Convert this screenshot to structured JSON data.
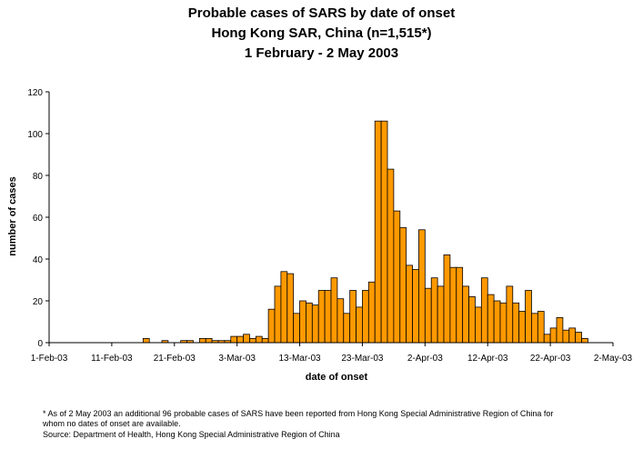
{
  "chart_data": {
    "type": "bar",
    "title": "Probable cases of SARS by date of onset",
    "subtitle": "Hong Kong SAR, China (n=1,515*)",
    "subtitle2": "1 February - 2 May 2003",
    "xlabel": "date of onset",
    "ylabel": "number of cases",
    "ylim": [
      0,
      120
    ],
    "yticks": [
      "0",
      "20",
      "40",
      "60",
      "80",
      "100",
      "120"
    ],
    "xticks": [
      "1-Feb-03",
      "11-Feb-03",
      "21-Feb-03",
      "3-Mar-03",
      "13-Mar-03",
      "23-Mar-03",
      "2-Apr-03",
      "12-Apr-03",
      "22-Apr-03",
      "2-May-03"
    ],
    "x_start": "1-Feb-03",
    "x_end": "2-May-03",
    "grid": false,
    "bar_color": "#FF9900",
    "categories": [
      "1-Feb-03",
      "2-Feb-03",
      "3-Feb-03",
      "4-Feb-03",
      "5-Feb-03",
      "6-Feb-03",
      "7-Feb-03",
      "8-Feb-03",
      "9-Feb-03",
      "10-Feb-03",
      "11-Feb-03",
      "12-Feb-03",
      "13-Feb-03",
      "14-Feb-03",
      "15-Feb-03",
      "16-Feb-03",
      "17-Feb-03",
      "18-Feb-03",
      "19-Feb-03",
      "20-Feb-03",
      "21-Feb-03",
      "22-Feb-03",
      "23-Feb-03",
      "24-Feb-03",
      "25-Feb-03",
      "26-Feb-03",
      "27-Feb-03",
      "28-Feb-03",
      "1-Mar-03",
      "2-Mar-03",
      "3-Mar-03",
      "4-Mar-03",
      "5-Mar-03",
      "6-Mar-03",
      "7-Mar-03",
      "8-Mar-03",
      "9-Mar-03",
      "10-Mar-03",
      "11-Mar-03",
      "12-Mar-03",
      "13-Mar-03",
      "14-Mar-03",
      "15-Mar-03",
      "16-Mar-03",
      "17-Mar-03",
      "18-Mar-03",
      "19-Mar-03",
      "20-Mar-03",
      "21-Mar-03",
      "22-Mar-03",
      "23-Mar-03",
      "24-Mar-03",
      "25-Mar-03",
      "26-Mar-03",
      "27-Mar-03",
      "28-Mar-03",
      "29-Mar-03",
      "30-Mar-03",
      "31-Mar-03",
      "1-Apr-03",
      "2-Apr-03",
      "3-Apr-03",
      "4-Apr-03",
      "5-Apr-03",
      "6-Apr-03",
      "7-Apr-03",
      "8-Apr-03",
      "9-Apr-03",
      "10-Apr-03",
      "11-Apr-03",
      "12-Apr-03",
      "13-Apr-03",
      "14-Apr-03",
      "15-Apr-03",
      "16-Apr-03",
      "17-Apr-03",
      "18-Apr-03",
      "19-Apr-03",
      "20-Apr-03",
      "21-Apr-03",
      "22-Apr-03",
      "23-Apr-03",
      "24-Apr-03",
      "25-Apr-03",
      "26-Apr-03",
      "27-Apr-03",
      "28-Apr-03",
      "29-Apr-03",
      "30-Apr-03",
      "1-May-03"
    ],
    "values": [
      0,
      0,
      0,
      0,
      0,
      0,
      0,
      0,
      0,
      0,
      0,
      0,
      0,
      0,
      0,
      2,
      0,
      0,
      1,
      0,
      0,
      1,
      1,
      0,
      2,
      2,
      1,
      1,
      1,
      3,
      3,
      4,
      2,
      3,
      2,
      16,
      27,
      34,
      33,
      14,
      20,
      19,
      18,
      25,
      25,
      31,
      21,
      14,
      25,
      17,
      25,
      29,
      106,
      106,
      83,
      63,
      55,
      37,
      35,
      54,
      26,
      31,
      27,
      42,
      36,
      36,
      27,
      22,
      17,
      31,
      23,
      20,
      19,
      27,
      19,
      15,
      25,
      14,
      15,
      4,
      7,
      12,
      6,
      7,
      5,
      2,
      0,
      0,
      0,
      0
    ]
  },
  "footnote_lines": [
    "* As of 2 May 2003 an additional 96 probable cases of SARS have been reported from Hong Kong Special Administrative Region of China for",
    "whom no dates of onset are available.",
    "Source: Department of Health, Hong Kong Special Administrative Region of China"
  ]
}
